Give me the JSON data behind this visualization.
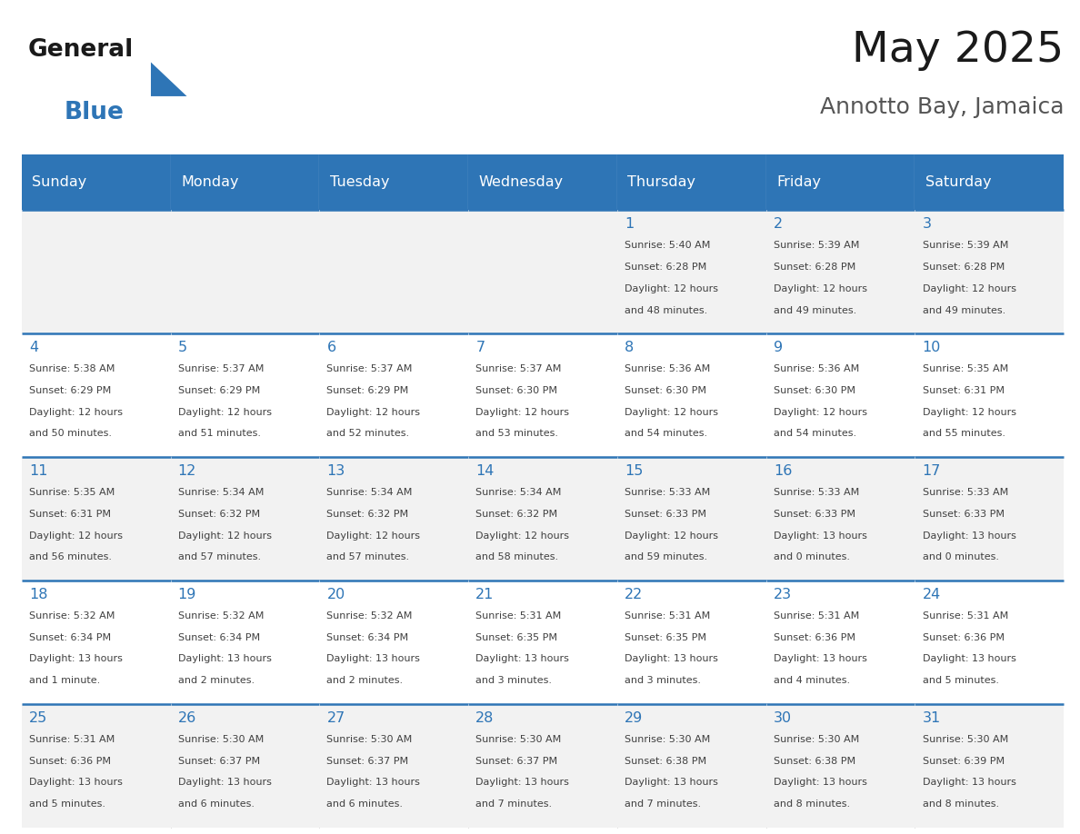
{
  "title": "May 2025",
  "subtitle": "Annotto Bay, Jamaica",
  "header_bg": "#2E75B6",
  "header_text_color": "#FFFFFF",
  "cell_bg_white": "#FFFFFF",
  "cell_bg_gray": "#F2F2F2",
  "day_number_color": "#2E75B6",
  "info_text_color": "#404040",
  "border_color": "#2E75B6",
  "days_of_week": [
    "Sunday",
    "Monday",
    "Tuesday",
    "Wednesday",
    "Thursday",
    "Friday",
    "Saturday"
  ],
  "calendar_data": [
    [
      {
        "day": "",
        "sunrise": "",
        "sunset": "",
        "daylight": ""
      },
      {
        "day": "",
        "sunrise": "",
        "sunset": "",
        "daylight": ""
      },
      {
        "day": "",
        "sunrise": "",
        "sunset": "",
        "daylight": ""
      },
      {
        "day": "",
        "sunrise": "",
        "sunset": "",
        "daylight": ""
      },
      {
        "day": "1",
        "sunrise": "5:40 AM",
        "sunset": "6:28 PM",
        "daylight": "12 hours and 48 minutes."
      },
      {
        "day": "2",
        "sunrise": "5:39 AM",
        "sunset": "6:28 PM",
        "daylight": "12 hours and 49 minutes."
      },
      {
        "day": "3",
        "sunrise": "5:39 AM",
        "sunset": "6:28 PM",
        "daylight": "12 hours and 49 minutes."
      }
    ],
    [
      {
        "day": "4",
        "sunrise": "5:38 AM",
        "sunset": "6:29 PM",
        "daylight": "12 hours and 50 minutes."
      },
      {
        "day": "5",
        "sunrise": "5:37 AM",
        "sunset": "6:29 PM",
        "daylight": "12 hours and 51 minutes."
      },
      {
        "day": "6",
        "sunrise": "5:37 AM",
        "sunset": "6:29 PM",
        "daylight": "12 hours and 52 minutes."
      },
      {
        "day": "7",
        "sunrise": "5:37 AM",
        "sunset": "6:30 PM",
        "daylight": "12 hours and 53 minutes."
      },
      {
        "day": "8",
        "sunrise": "5:36 AM",
        "sunset": "6:30 PM",
        "daylight": "12 hours and 54 minutes."
      },
      {
        "day": "9",
        "sunrise": "5:36 AM",
        "sunset": "6:30 PM",
        "daylight": "12 hours and 54 minutes."
      },
      {
        "day": "10",
        "sunrise": "5:35 AM",
        "sunset": "6:31 PM",
        "daylight": "12 hours and 55 minutes."
      }
    ],
    [
      {
        "day": "11",
        "sunrise": "5:35 AM",
        "sunset": "6:31 PM",
        "daylight": "12 hours and 56 minutes."
      },
      {
        "day": "12",
        "sunrise": "5:34 AM",
        "sunset": "6:32 PM",
        "daylight": "12 hours and 57 minutes."
      },
      {
        "day": "13",
        "sunrise": "5:34 AM",
        "sunset": "6:32 PM",
        "daylight": "12 hours and 57 minutes."
      },
      {
        "day": "14",
        "sunrise": "5:34 AM",
        "sunset": "6:32 PM",
        "daylight": "12 hours and 58 minutes."
      },
      {
        "day": "15",
        "sunrise": "5:33 AM",
        "sunset": "6:33 PM",
        "daylight": "12 hours and 59 minutes."
      },
      {
        "day": "16",
        "sunrise": "5:33 AM",
        "sunset": "6:33 PM",
        "daylight": "13 hours and 0 minutes."
      },
      {
        "day": "17",
        "sunrise": "5:33 AM",
        "sunset": "6:33 PM",
        "daylight": "13 hours and 0 minutes."
      }
    ],
    [
      {
        "day": "18",
        "sunrise": "5:32 AM",
        "sunset": "6:34 PM",
        "daylight": "13 hours and 1 minute."
      },
      {
        "day": "19",
        "sunrise": "5:32 AM",
        "sunset": "6:34 PM",
        "daylight": "13 hours and 2 minutes."
      },
      {
        "day": "20",
        "sunrise": "5:32 AM",
        "sunset": "6:34 PM",
        "daylight": "13 hours and 2 minutes."
      },
      {
        "day": "21",
        "sunrise": "5:31 AM",
        "sunset": "6:35 PM",
        "daylight": "13 hours and 3 minutes."
      },
      {
        "day": "22",
        "sunrise": "5:31 AM",
        "sunset": "6:35 PM",
        "daylight": "13 hours and 3 minutes."
      },
      {
        "day": "23",
        "sunrise": "5:31 AM",
        "sunset": "6:36 PM",
        "daylight": "13 hours and 4 minutes."
      },
      {
        "day": "24",
        "sunrise": "5:31 AM",
        "sunset": "6:36 PM",
        "daylight": "13 hours and 5 minutes."
      }
    ],
    [
      {
        "day": "25",
        "sunrise": "5:31 AM",
        "sunset": "6:36 PM",
        "daylight": "13 hours and 5 minutes."
      },
      {
        "day": "26",
        "sunrise": "5:30 AM",
        "sunset": "6:37 PM",
        "daylight": "13 hours and 6 minutes."
      },
      {
        "day": "27",
        "sunrise": "5:30 AM",
        "sunset": "6:37 PM",
        "daylight": "13 hours and 6 minutes."
      },
      {
        "day": "28",
        "sunrise": "5:30 AM",
        "sunset": "6:37 PM",
        "daylight": "13 hours and 7 minutes."
      },
      {
        "day": "29",
        "sunrise": "5:30 AM",
        "sunset": "6:38 PM",
        "daylight": "13 hours and 7 minutes."
      },
      {
        "day": "30",
        "sunrise": "5:30 AM",
        "sunset": "6:38 PM",
        "daylight": "13 hours and 8 minutes."
      },
      {
        "day": "31",
        "sunrise": "5:30 AM",
        "sunset": "6:39 PM",
        "daylight": "13 hours and 8 minutes."
      }
    ]
  ]
}
